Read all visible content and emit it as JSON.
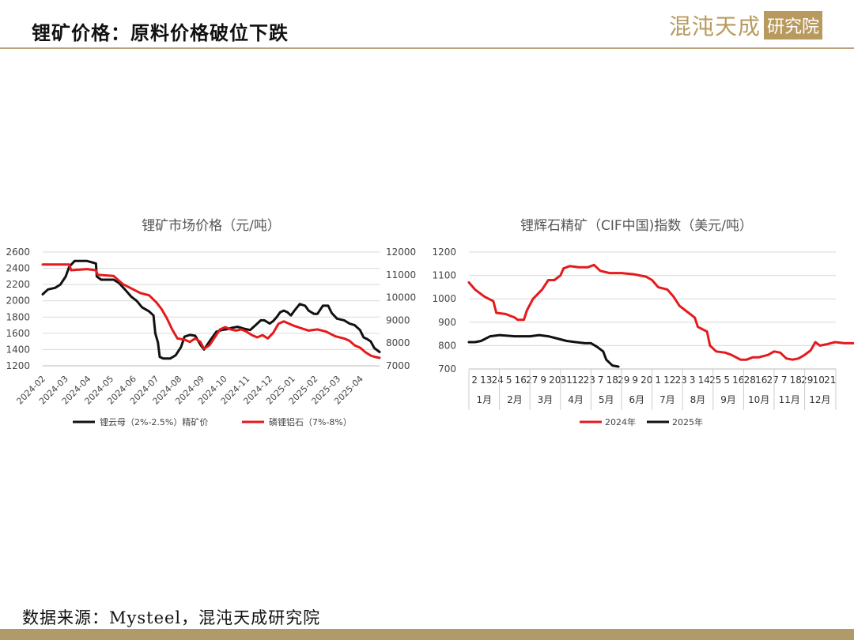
{
  "header": {
    "title": "锂矿价格：原料价格破位下跌",
    "logo_main": "混沌天成",
    "logo_box": "研究院"
  },
  "source": "数据来源：Mysteel，混沌天成研究院",
  "colors": {
    "red": "#e41a1c",
    "black": "#111111",
    "gold": "#b89a5e"
  },
  "chart_data": [
    {
      "type": "line",
      "title": "锂矿市场价格（元/吨）",
      "x_ticks": [
        "2024-02",
        "2024-03",
        "2024-04",
        "2024-05",
        "2024-06",
        "2024-07",
        "2024-08",
        "2024-09",
        "2024-10",
        "2024-11",
        "2024-12",
        "2025-01",
        "2025-02",
        "2025-03",
        "2025-04"
      ],
      "y_left": {
        "min": 1200,
        "max": 2600,
        "step": 200,
        "ticks": [
          "1200",
          "1400",
          "1600",
          "1800",
          "2000",
          "2200",
          "2400",
          "2600"
        ]
      },
      "y_right": {
        "min": 7000,
        "max": 12000,
        "step": 1000,
        "ticks": [
          "7000",
          "8000",
          "9000",
          "10000",
          "11000",
          "12000"
        ]
      },
      "series": [
        {
          "name": "锂云母（2%-2.5%）精矿价",
          "axis": "left",
          "color": "#111111",
          "points": [
            [
              0,
              2080
            ],
            [
              0.1,
              2100
            ],
            [
              0.3,
              2140
            ],
            [
              0.7,
              2160
            ],
            [
              1,
              2200
            ],
            [
              1.3,
              2300
            ],
            [
              1.5,
              2420
            ],
            [
              1.8,
              2490
            ],
            [
              2.5,
              2490
            ],
            [
              3,
              2460
            ],
            [
              3.05,
              2300
            ],
            [
              3.3,
              2260
            ],
            [
              4,
              2260
            ],
            [
              4.3,
              2220
            ],
            [
              4.6,
              2150
            ],
            [
              5,
              2050
            ],
            [
              5.3,
              2000
            ],
            [
              5.6,
              1920
            ],
            [
              6,
              1870
            ],
            [
              6.25,
              1820
            ],
            [
              6.35,
              1600
            ],
            [
              6.5,
              1490
            ],
            [
              6.6,
              1310
            ],
            [
              6.8,
              1290
            ],
            [
              7.2,
              1290
            ],
            [
              7.5,
              1330
            ],
            [
              7.8,
              1430
            ],
            [
              8,
              1560
            ],
            [
              8.3,
              1580
            ],
            [
              8.6,
              1570
            ],
            [
              8.9,
              1460
            ],
            [
              9.1,
              1400
            ],
            [
              9.5,
              1530
            ],
            [
              9.8,
              1620
            ],
            [
              10.1,
              1640
            ],
            [
              10.4,
              1650
            ],
            [
              10.7,
              1670
            ],
            [
              11,
              1680
            ],
            [
              11.3,
              1660
            ],
            [
              11.5,
              1650
            ],
            [
              11.7,
              1640
            ],
            [
              12,
              1700
            ],
            [
              12.3,
              1760
            ],
            [
              12.5,
              1760
            ],
            [
              12.8,
              1720
            ],
            [
              13,
              1750
            ],
            [
              13.2,
              1800
            ],
            [
              13.4,
              1860
            ],
            [
              13.6,
              1880
            ],
            [
              13.8,
              1860
            ],
            [
              14,
              1820
            ],
            [
              14.2,
              1880
            ],
            [
              14.5,
              1960
            ],
            [
              14.8,
              1940
            ],
            [
              15,
              1880
            ],
            [
              15.3,
              1840
            ],
            [
              15.5,
              1840
            ],
            [
              15.8,
              1940
            ],
            [
              16.1,
              1940
            ],
            [
              16.3,
              1850
            ],
            [
              16.6,
              1780
            ],
            [
              17,
              1760
            ],
            [
              17.3,
              1720
            ],
            [
              17.6,
              1700
            ],
            [
              17.9,
              1640
            ],
            [
              18.1,
              1550
            ],
            [
              18.3,
              1530
            ],
            [
              18.5,
              1500
            ],
            [
              18.7,
              1420
            ],
            [
              19,
              1370
            ]
          ]
        },
        {
          "name": "磷锂铝石（7%-8%）",
          "axis": "right",
          "color": "#e41a1c",
          "points": [
            [
              0,
              11450
            ],
            [
              1.5,
              11450
            ],
            [
              1.6,
              11200
            ],
            [
              2.5,
              11250
            ],
            [
              3,
              11200
            ],
            [
              3.1,
              11000
            ],
            [
              4,
              10950
            ],
            [
              4.5,
              10600
            ],
            [
              5,
              10400
            ],
            [
              5.5,
              10200
            ],
            [
              6,
              10100
            ],
            [
              6.4,
              9800
            ],
            [
              6.7,
              9500
            ],
            [
              7,
              9100
            ],
            [
              7.3,
              8600
            ],
            [
              7.6,
              8200
            ],
            [
              8,
              8150
            ],
            [
              8.3,
              8050
            ],
            [
              8.6,
              8200
            ],
            [
              8.9,
              8050
            ],
            [
              9.1,
              7750
            ],
            [
              9.4,
              7900
            ],
            [
              9.7,
              8250
            ],
            [
              10,
              8600
            ],
            [
              10.3,
              8700
            ],
            [
              10.6,
              8600
            ],
            [
              10.9,
              8550
            ],
            [
              11.2,
              8600
            ],
            [
              11.5,
              8500
            ],
            [
              11.8,
              8350
            ],
            [
              12.1,
              8250
            ],
            [
              12.4,
              8350
            ],
            [
              12.7,
              8200
            ],
            [
              13,
              8450
            ],
            [
              13.3,
              8850
            ],
            [
              13.6,
              8950
            ],
            [
              13.9,
              8850
            ],
            [
              14.2,
              8750
            ],
            [
              14.6,
              8650
            ],
            [
              15,
              8550
            ],
            [
              15.5,
              8600
            ],
            [
              16,
              8500
            ],
            [
              16.5,
              8300
            ],
            [
              17,
              8200
            ],
            [
              17.3,
              8100
            ],
            [
              17.6,
              7900
            ],
            [
              17.9,
              7800
            ],
            [
              18.2,
              7600
            ],
            [
              18.5,
              7450
            ],
            [
              18.7,
              7400
            ],
            [
              19,
              7350
            ]
          ]
        }
      ]
    },
    {
      "type": "line",
      "title": "锂辉石精矿（CIF中国)指数（美元/吨）",
      "y": {
        "min": 700,
        "max": 1200,
        "step": 100,
        "ticks": [
          "700",
          "800",
          "900",
          "1000",
          "1100",
          "1200"
        ]
      },
      "x_day_labels": [
        "2",
        "13",
        "24",
        "5",
        "16",
        "27",
        "9",
        "20",
        "31",
        "12",
        "23",
        "7",
        "18",
        "29",
        "9",
        "20",
        "1",
        "12",
        "23",
        "3",
        "14",
        "25",
        "5",
        "16",
        "28",
        "16",
        "27",
        "7",
        "18",
        "29",
        "10",
        "21"
      ],
      "months": [
        "1月",
        "2月",
        "3月",
        "4月",
        "5月",
        "6月",
        "7月",
        "8月",
        "9月",
        "10月",
        "11月",
        "12月"
      ],
      "series": [
        {
          "name": "2024年",
          "color": "#e41a1c",
          "points": [
            [
              0,
              1070
            ],
            [
              0.2,
              1040
            ],
            [
              0.5,
              1010
            ],
            [
              0.8,
              990
            ],
            [
              0.9,
              940
            ],
            [
              1.2,
              935
            ],
            [
              1.5,
              920
            ],
            [
              1.6,
              910
            ],
            [
              1.8,
              910
            ],
            [
              1.9,
              950
            ],
            [
              2.1,
              1000
            ],
            [
              2.4,
              1040
            ],
            [
              2.6,
              1080
            ],
            [
              2.8,
              1080
            ],
            [
              3,
              1100
            ],
            [
              3.1,
              1130
            ],
            [
              3.3,
              1140
            ],
            [
              3.6,
              1135
            ],
            [
              3.9,
              1135
            ],
            [
              4.1,
              1145
            ],
            [
              4.3,
              1120
            ],
            [
              4.6,
              1110
            ],
            [
              5,
              1110
            ],
            [
              5.4,
              1105
            ],
            [
              5.8,
              1095
            ],
            [
              6,
              1080
            ],
            [
              6.2,
              1050
            ],
            [
              6.5,
              1040
            ],
            [
              6.7,
              1010
            ],
            [
              6.9,
              970
            ],
            [
              7.2,
              940
            ],
            [
              7.4,
              920
            ],
            [
              7.5,
              880
            ],
            [
              7.8,
              860
            ],
            [
              7.9,
              800
            ],
            [
              8.1,
              775
            ],
            [
              8.4,
              770
            ],
            [
              8.6,
              760
            ],
            [
              8.9,
              740
            ],
            [
              9.1,
              740
            ],
            [
              9.3,
              750
            ],
            [
              9.5,
              750
            ],
            [
              9.8,
              760
            ],
            [
              10,
              775
            ],
            [
              10.2,
              770
            ],
            [
              10.4,
              745
            ],
            [
              10.6,
              740
            ],
            [
              10.8,
              745
            ],
            [
              11,
              760
            ],
            [
              11.2,
              780
            ],
            [
              11.35,
              815
            ],
            [
              11.5,
              800
            ],
            [
              11.7,
              805
            ],
            [
              12,
              815
            ],
            [
              12.3,
              810
            ],
            [
              12.6,
              810
            ],
            [
              12.9,
              810
            ],
            [
              13.2,
              815
            ],
            [
              13.4,
              815
            ]
          ]
        },
        {
          "name": "2025年",
          "color": "#111111",
          "points": [
            [
              0,
              815
            ],
            [
              0.2,
              815
            ],
            [
              0.4,
              820
            ],
            [
              0.7,
              840
            ],
            [
              1,
              845
            ],
            [
              1.5,
              840
            ],
            [
              2,
              840
            ],
            [
              2.3,
              845
            ],
            [
              2.6,
              840
            ],
            [
              2.9,
              830
            ],
            [
              3.2,
              820
            ],
            [
              3.5,
              815
            ],
            [
              3.8,
              810
            ],
            [
              4,
              810
            ],
            [
              4.2,
              795
            ],
            [
              4.4,
              775
            ],
            [
              4.5,
              740
            ],
            [
              4.7,
              715
            ],
            [
              4.9,
              710
            ]
          ]
        }
      ]
    }
  ]
}
